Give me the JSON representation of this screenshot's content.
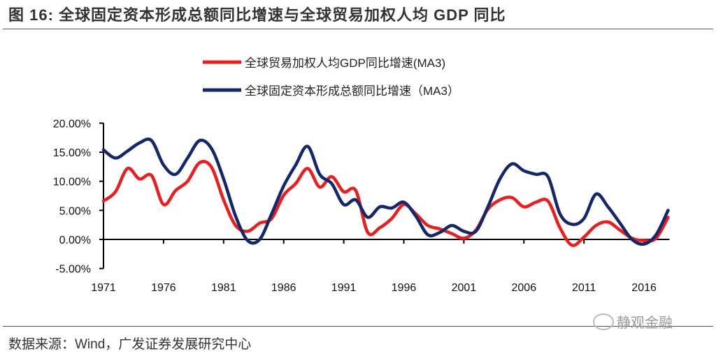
{
  "title": "图 16:  全球固定资本形成总额同比增速与全球贸易加权人均 GDP 同比",
  "source": "数据来源：Wind，广发证券发展研究中心",
  "watermark": "静观金融",
  "chart_data": {
    "type": "line",
    "title": "",
    "xlabel": "",
    "ylabel": "",
    "x": [
      1971,
      1972,
      1973,
      1974,
      1975,
      1976,
      1977,
      1978,
      1979,
      1980,
      1981,
      1982,
      1983,
      1984,
      1985,
      1986,
      1987,
      1988,
      1989,
      1990,
      1991,
      1992,
      1993,
      1994,
      1995,
      1996,
      1997,
      1998,
      1999,
      2000,
      2001,
      2002,
      2003,
      2004,
      2005,
      2006,
      2007,
      2008,
      2009,
      2010,
      2011,
      2012,
      2013,
      2014,
      2015,
      2016,
      2017,
      2018
    ],
    "x_ticks": [
      "1971",
      "1976",
      "1981",
      "1986",
      "1991",
      "1996",
      "2001",
      "2006",
      "2011",
      "2016"
    ],
    "y_ticks": [
      "-5.00%",
      "0.00%",
      "5.00%",
      "10.00%",
      "15.00%",
      "20.00%"
    ],
    "ylim": [
      -5,
      20
    ],
    "grid": false,
    "legend_position": "top-center",
    "series": [
      {
        "name": "全球贸易加权人均GDP同比增速(MA3)",
        "color": "#ee1c1c",
        "values": [
          6.6,
          8.2,
          12.2,
          10.4,
          11.0,
          6.0,
          8.4,
          10.0,
          13.2,
          12.4,
          6.8,
          2.4,
          1.4,
          2.8,
          3.6,
          7.6,
          9.6,
          12.2,
          9.0,
          10.8,
          8.2,
          8.4,
          1.2,
          2.0,
          3.6,
          6.0,
          4.4,
          2.4,
          1.8,
          1.0,
          0.2,
          1.6,
          5.2,
          6.8,
          7.2,
          5.6,
          6.4,
          6.6,
          2.0,
          -1.0,
          0.4,
          2.4,
          3.0,
          1.6,
          0.2,
          -0.2,
          0.2,
          3.8
        ]
      },
      {
        "name": "全球固定资本形成总额同比增速（MA3）",
        "color": "#13286b",
        "values": [
          15.4,
          14.0,
          15.2,
          16.6,
          17.0,
          12.8,
          11.2,
          14.0,
          17.0,
          15.6,
          10.4,
          4.0,
          -0.2,
          0.0,
          4.4,
          9.2,
          12.8,
          16.0,
          11.2,
          9.6,
          6.0,
          6.8,
          3.8,
          5.6,
          5.4,
          6.4,
          4.0,
          0.8,
          1.2,
          2.4,
          1.4,
          1.4,
          5.6,
          10.4,
          13.0,
          11.8,
          11.2,
          10.8,
          4.4,
          2.6,
          3.6,
          7.8,
          5.6,
          2.8,
          0.0,
          -0.8,
          0.8,
          5.0
        ]
      }
    ]
  }
}
